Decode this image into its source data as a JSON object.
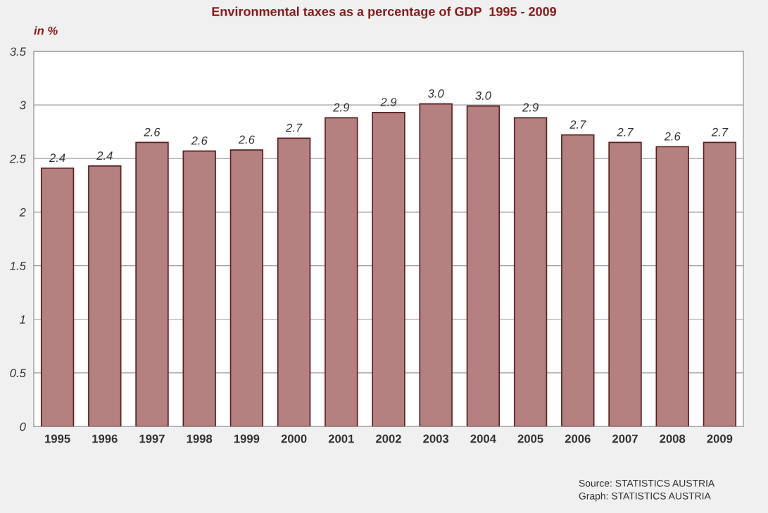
{
  "chart_data": {
    "type": "bar",
    "title": "Environmental taxes as a percentage of GDP  1995 - 2009",
    "ylabel": "in %",
    "categories": [
      "1995",
      "1996",
      "1997",
      "1998",
      "1999",
      "2000",
      "2001",
      "2002",
      "2003",
      "2004",
      "2005",
      "2006",
      "2007",
      "2008",
      "2009"
    ],
    "values": [
      2.41,
      2.43,
      2.65,
      2.57,
      2.58,
      2.69,
      2.88,
      2.93,
      3.01,
      2.99,
      2.88,
      2.72,
      2.65,
      2.61,
      2.65
    ],
    "value_labels": [
      "2.4",
      "2.4",
      "2.6",
      "2.6",
      "2.6",
      "2.7",
      "2.9",
      "2.9",
      "3.0",
      "3.0",
      "2.9",
      "2.7",
      "2.7",
      "2.6",
      "2.7"
    ],
    "color": "#b48080",
    "ylim": [
      0,
      3.5
    ],
    "yticks": [
      0,
      0.5,
      1,
      1.5,
      2,
      2.5,
      3,
      3.5
    ],
    "grid": "y",
    "legend": false,
    "annotations": [
      "Source: STATISTICS AUSTRIA",
      "Graph: STATISTICS AUSTRIA"
    ]
  }
}
